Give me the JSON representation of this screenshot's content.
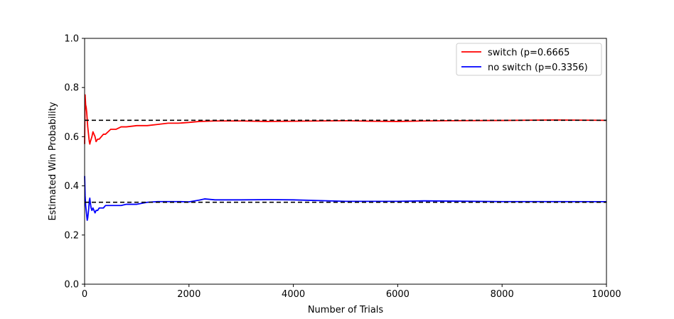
{
  "chart_data": {
    "type": "line",
    "title": "",
    "xlabel": "Number of Trials",
    "ylabel": "Estimated Win Probability",
    "xlim": [
      0,
      10000
    ],
    "ylim": [
      0.0,
      1.0
    ],
    "xticks": [
      "0",
      "2000",
      "4000",
      "6000",
      "8000",
      "10000"
    ],
    "yticks": [
      "0.0",
      "0.2",
      "0.4",
      "0.6",
      "0.8",
      "1.0"
    ],
    "grid": false,
    "legend_position": "top-right",
    "series": [
      {
        "name": "switch (p=0.6665",
        "color": "#ff0000",
        "x": [
          1,
          10,
          20,
          30,
          40,
          50,
          60,
          70,
          80,
          90,
          100,
          110,
          125,
          140,
          160,
          180,
          200,
          220,
          250,
          280,
          320,
          360,
          400,
          450,
          500,
          600,
          700,
          800,
          1000,
          1200,
          1400,
          1600,
          1800,
          2000,
          2200,
          2500,
          3000,
          3500,
          4000,
          5000,
          5500,
          6000,
          6500,
          7000,
          8000,
          9000,
          10000
        ],
        "values": [
          0.57,
          0.77,
          0.73,
          0.72,
          0.7,
          0.67,
          0.64,
          0.62,
          0.6,
          0.58,
          0.57,
          0.58,
          0.59,
          0.6,
          0.62,
          0.61,
          0.6,
          0.58,
          0.59,
          0.59,
          0.6,
          0.61,
          0.61,
          0.62,
          0.63,
          0.63,
          0.64,
          0.64,
          0.645,
          0.645,
          0.65,
          0.655,
          0.655,
          0.658,
          0.662,
          0.664,
          0.664,
          0.662,
          0.663,
          0.665,
          0.663,
          0.662,
          0.664,
          0.665,
          0.666,
          0.668,
          0.6665
        ]
      },
      {
        "name": "no switch  (p=0.3356)",
        "color": "#0000ff",
        "x": [
          1,
          10,
          20,
          30,
          40,
          50,
          60,
          70,
          80,
          90,
          100,
          110,
          125,
          140,
          160,
          180,
          200,
          220,
          250,
          280,
          320,
          360,
          400,
          450,
          500,
          600,
          700,
          800,
          1000,
          1200,
          1400,
          1600,
          1800,
          2000,
          2200,
          2300,
          2500,
          3000,
          3500,
          4000,
          5000,
          5500,
          6000,
          6500,
          7000,
          8000,
          9000,
          10000
        ],
        "values": [
          0.44,
          0.36,
          0.32,
          0.3,
          0.28,
          0.26,
          0.27,
          0.29,
          0.31,
          0.34,
          0.35,
          0.33,
          0.31,
          0.3,
          0.31,
          0.3,
          0.29,
          0.3,
          0.3,
          0.31,
          0.31,
          0.31,
          0.32,
          0.32,
          0.32,
          0.32,
          0.32,
          0.325,
          0.325,
          0.333,
          0.336,
          0.336,
          0.336,
          0.335,
          0.342,
          0.347,
          0.343,
          0.343,
          0.344,
          0.343,
          0.337,
          0.337,
          0.337,
          0.339,
          0.338,
          0.336,
          0.336,
          0.3356
        ]
      }
    ],
    "reference_lines": [
      {
        "y": 0.6667,
        "color": "#000000",
        "style": "dashed"
      },
      {
        "y": 0.3333,
        "color": "#000000",
        "style": "dashed"
      }
    ]
  }
}
